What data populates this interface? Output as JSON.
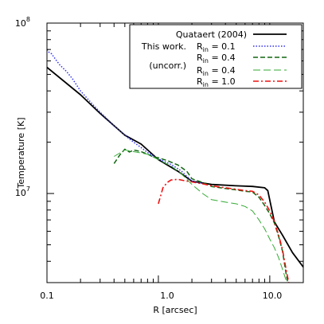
{
  "chart_data": {
    "type": "line",
    "title": "",
    "xlabel": "R [arcsec]",
    "ylabel": "Temperature [K]",
    "xscale": "log",
    "yscale": "log",
    "xlim": [
      0.1,
      20
    ],
    "ylim": [
      3000000,
      100000000
    ],
    "grid": false,
    "legend_position": "top-right",
    "x_ticks": [
      {
        "value": 0.1,
        "label": "0.1"
      },
      {
        "value": 1.0,
        "label": "1.0"
      },
      {
        "value": 10.0,
        "label": "10.0"
      }
    ],
    "y_ticks": [
      {
        "value": 10000000,
        "base": "10",
        "exp": "7"
      },
      {
        "value": 100000000,
        "base": "10",
        "exp": "8"
      }
    ],
    "legend": {
      "group_labels": [
        "This work.",
        "(uncorr.)"
      ],
      "entries": [
        {
          "text": "Quataert (2004)"
        },
        {
          "main": "R",
          "sub": "in",
          "rest": " = 0.1"
        },
        {
          "main": "R",
          "sub": "in",
          "rest": " = 0.4"
        },
        {
          "main": "R",
          "sub": "in",
          "rest": " = 0.4"
        },
        {
          "main": "R",
          "sub": "in",
          "rest": " = 1.0"
        }
      ]
    },
    "series": [
      {
        "color": "#000000",
        "dash": "solid",
        "width": 1.8,
        "points": [
          [
            0.1,
            55000000
          ],
          [
            0.2,
            38000000
          ],
          [
            0.3,
            29500000
          ],
          [
            0.5,
            22000000
          ],
          [
            0.7,
            19500000
          ],
          [
            1.0,
            15800000
          ],
          [
            1.5,
            13500000
          ],
          [
            2.0,
            11800000
          ],
          [
            3.0,
            11300000
          ],
          [
            5.0,
            11100000
          ],
          [
            7.0,
            11000000
          ],
          [
            9.0,
            10800000
          ],
          [
            9.6,
            10400000
          ],
          [
            10.2,
            8600000
          ],
          [
            11.0,
            6800000
          ],
          [
            13.0,
            5700000
          ],
          [
            16.0,
            4500000
          ],
          [
            20.0,
            3700000
          ]
        ]
      },
      {
        "color": "#3333ee",
        "dash": "dot",
        "width": 1.5,
        "points": [
          [
            0.1,
            70000000
          ],
          [
            0.105,
            67000000
          ],
          [
            0.11,
            66000000
          ],
          [
            0.12,
            61000000
          ],
          [
            0.13,
            57000000
          ],
          [
            0.15,
            52000000
          ],
          [
            0.17,
            47000000
          ],
          [
            0.2,
            40000000
          ],
          [
            0.25,
            34000000
          ],
          [
            0.3,
            30000000
          ],
          [
            0.4,
            25000000
          ],
          [
            0.5,
            22000000
          ],
          [
            0.6,
            20000000
          ],
          [
            0.7,
            18600000
          ],
          [
            0.8,
            17400000
          ],
          [
            1.0,
            16000000
          ],
          [
            1.3,
            14800000
          ],
          [
            1.6,
            13600000
          ],
          [
            2.0,
            11800000
          ],
          [
            2.5,
            11500000
          ]
        ]
      },
      {
        "color": "#116611",
        "dash": "dash",
        "width": 1.5,
        "points": [
          [
            0.4,
            15000000
          ],
          [
            0.45,
            16800000
          ],
          [
            0.5,
            18200000
          ],
          [
            0.55,
            17500000
          ],
          [
            0.6,
            18000000
          ],
          [
            0.7,
            17600000
          ],
          [
            0.8,
            17000000
          ],
          [
            0.9,
            16400000
          ],
          [
            1.0,
            16200000
          ],
          [
            1.2,
            15600000
          ],
          [
            1.5,
            14700000
          ],
          [
            1.8,
            13500000
          ],
          [
            2.0,
            12200000
          ],
          [
            2.5,
            11600000
          ],
          [
            3.0,
            11000000
          ],
          [
            4.0,
            10700000
          ],
          [
            5.0,
            10500000
          ],
          [
            6.0,
            10300000
          ],
          [
            7.0,
            10200000
          ],
          [
            8.0,
            9500000
          ],
          [
            9.0,
            8500000
          ],
          [
            10.0,
            7600000
          ],
          [
            11.0,
            6700000
          ],
          [
            12.0,
            5600000
          ],
          [
            13.0,
            4600000
          ],
          [
            14.0,
            3400000
          ],
          [
            14.5,
            3000000
          ]
        ]
      },
      {
        "color": "#33aa33",
        "dash": "longdash",
        "width": 1.0,
        "points": [
          [
            0.4,
            16500000
          ],
          [
            0.5,
            18000000
          ],
          [
            0.6,
            17600000
          ],
          [
            0.8,
            17000000
          ],
          [
            1.0,
            15800000
          ],
          [
            1.3,
            14500000
          ],
          [
            1.6,
            13100000
          ],
          [
            2.0,
            11300000
          ],
          [
            2.5,
            10000000
          ],
          [
            3.0,
            9200000
          ],
          [
            4.0,
            8900000
          ],
          [
            5.0,
            8700000
          ],
          [
            6.0,
            8400000
          ],
          [
            7.0,
            7900000
          ],
          [
            8.0,
            7000000
          ],
          [
            9.0,
            6200000
          ],
          [
            10.0,
            5400000
          ],
          [
            11.0,
            4800000
          ],
          [
            12.0,
            4200000
          ],
          [
            13.0,
            3600000
          ],
          [
            14.0,
            3100000
          ]
        ]
      },
      {
        "color": "#ee1111",
        "dash": "dashdot",
        "width": 1.6,
        "points": [
          [
            1.0,
            8700000
          ],
          [
            1.1,
            10800000
          ],
          [
            1.2,
            11600000
          ],
          [
            1.3,
            12000000
          ],
          [
            1.5,
            12100000
          ],
          [
            1.7,
            11900000
          ],
          [
            2.0,
            11700000
          ],
          [
            2.5,
            11400000
          ],
          [
            3.0,
            11100000
          ],
          [
            4.0,
            10800000
          ],
          [
            5.0,
            10600000
          ],
          [
            6.0,
            10400000
          ],
          [
            7.0,
            10300000
          ],
          [
            8.0,
            9800000
          ],
          [
            9.0,
            8900000
          ],
          [
            10.0,
            7900000
          ],
          [
            11.0,
            6800000
          ],
          [
            12.0,
            5700000
          ],
          [
            13.0,
            4700000
          ],
          [
            14.0,
            3600000
          ],
          [
            14.8,
            3000000
          ]
        ]
      }
    ]
  }
}
